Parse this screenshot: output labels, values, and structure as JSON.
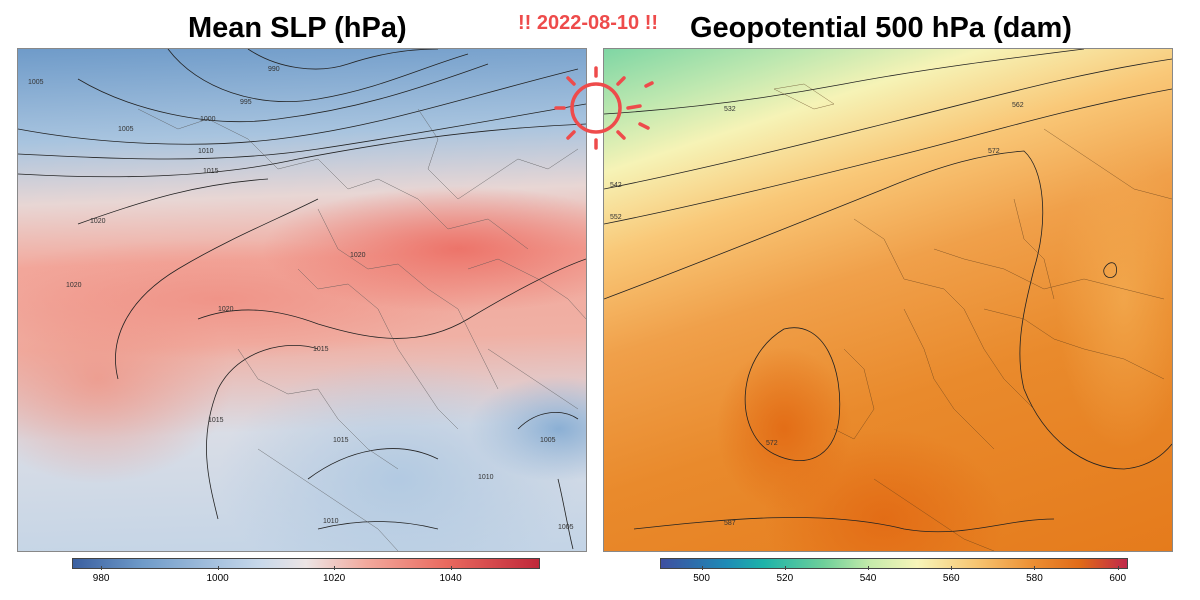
{
  "header": {
    "title_left": "Mean SLP (hPa)",
    "date": "!! 2022-08-10 !!",
    "title_right": "Geopotential 500 hPa (dam)"
  },
  "panels": {
    "slp": {
      "contour_labels": [
        "990",
        "995",
        "1000",
        "1005",
        "1005",
        "1010",
        "1015",
        "1020",
        "1020",
        "1020",
        "1020",
        "1015",
        "1015",
        "1015",
        "1010",
        "1005",
        "1010",
        "1005"
      ]
    },
    "z500": {
      "contour_labels": [
        "532",
        "562",
        "572",
        "542",
        "552",
        "572",
        "587"
      ]
    }
  },
  "colorbars": {
    "slp": {
      "ticks": [
        "980",
        "1000",
        "1020",
        "1040"
      ],
      "tick_values": [
        980,
        1000,
        1020,
        1040
      ],
      "range": [
        975,
        1055
      ]
    },
    "z500": {
      "ticks": [
        "500",
        "520",
        "540",
        "560",
        "580",
        "600"
      ],
      "tick_values": [
        500,
        520,
        540,
        560,
        580,
        600
      ],
      "range": [
        490,
        602
      ]
    }
  },
  "colors": {
    "date_accent": "#ee4b4b",
    "high_pressure": "#ea6a5f",
    "low_pressure": "#6f9bc9",
    "geopotential_high": "#e57b1c"
  },
  "icons": {
    "sun": "sun-icon"
  }
}
